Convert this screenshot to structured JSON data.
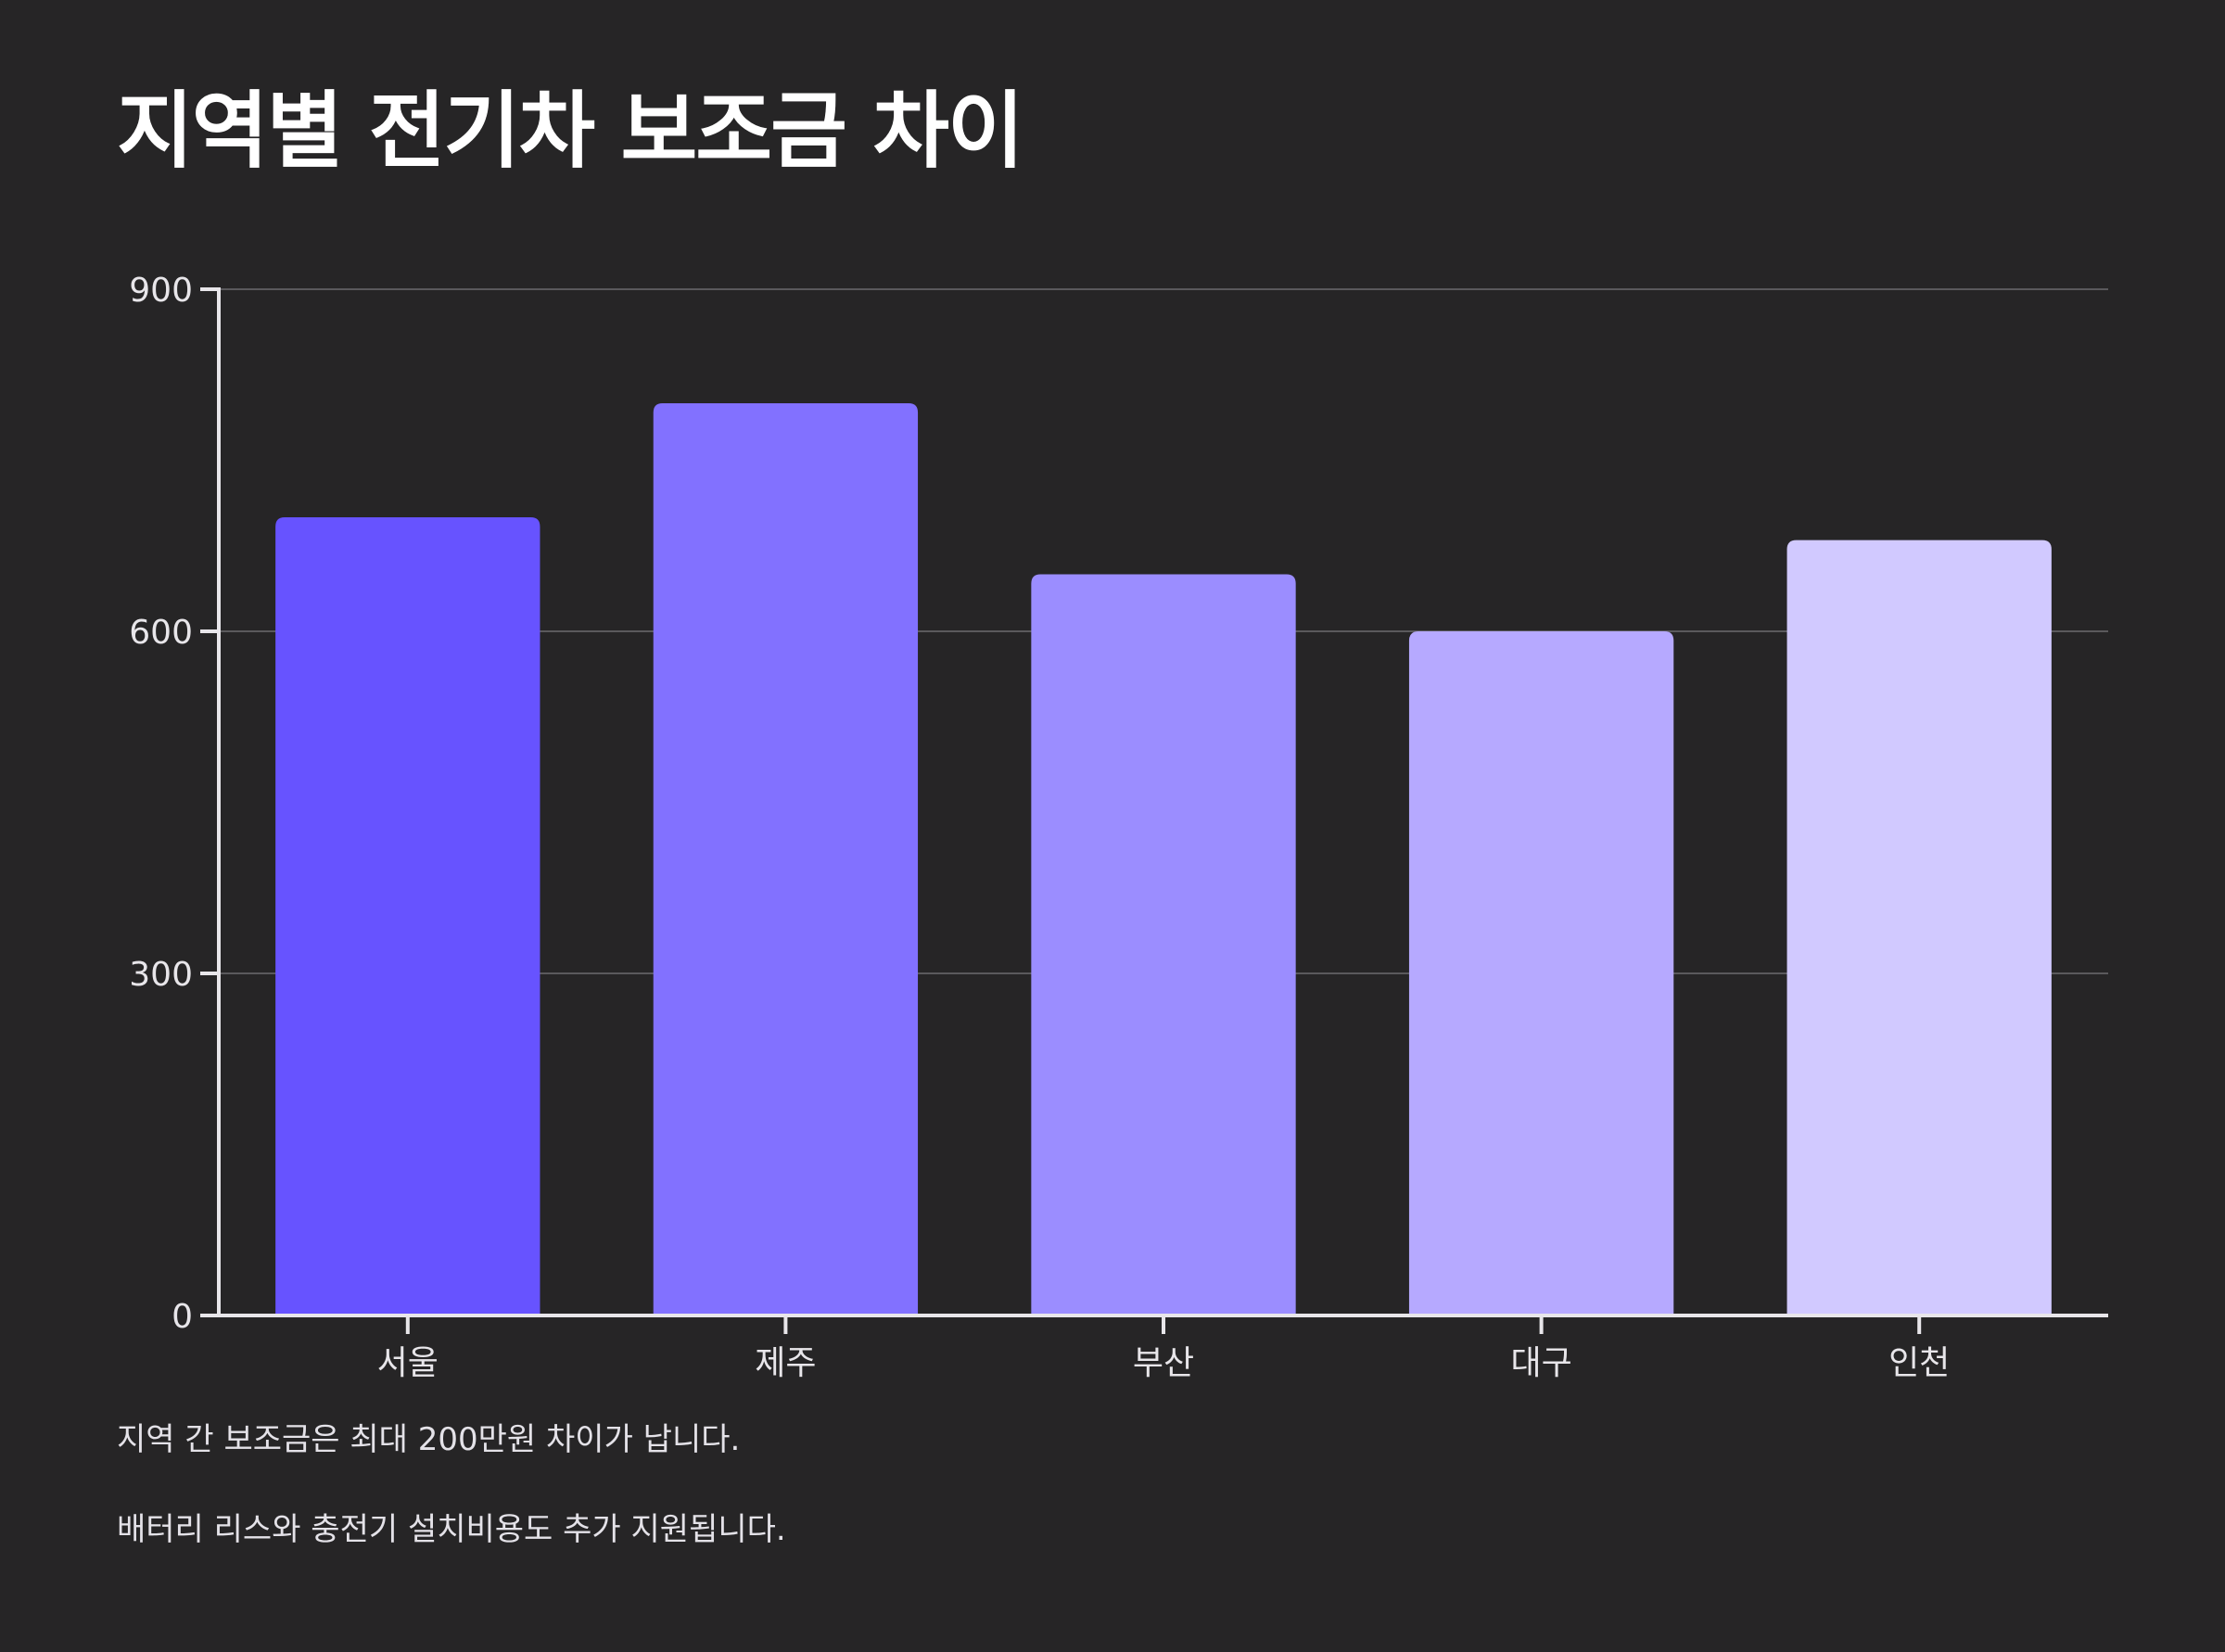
{
  "title": "지역별 전기차 보조금 차이",
  "notes": [
    "지역 간 보조금은 최대 200만원 차이가 납니다.",
    "배터리 리스와 충전기 설치비용도 추가 지원됩니다."
  ],
  "colors": {
    "background": "#262526",
    "axis": "#e8e6ea",
    "grid": "#5a595c",
    "text": "#e8e6ea"
  },
  "chart_data": {
    "type": "bar",
    "title": "지역별 전기차 보조금 차이",
    "categories": [
      "서울",
      "제주",
      "부산",
      "대구",
      "인천"
    ],
    "values": [
      700,
      800,
      650,
      600,
      680
    ],
    "bar_colors": [
      "#6753ff",
      "#8271ff",
      "#9b8dff",
      "#b6a9ff",
      "#d1c9ff"
    ],
    "ylim": [
      0,
      900
    ],
    "yticks": [
      0,
      300,
      600,
      900
    ],
    "xlabel": "",
    "ylabel": "",
    "grid": true,
    "legend": "none"
  }
}
